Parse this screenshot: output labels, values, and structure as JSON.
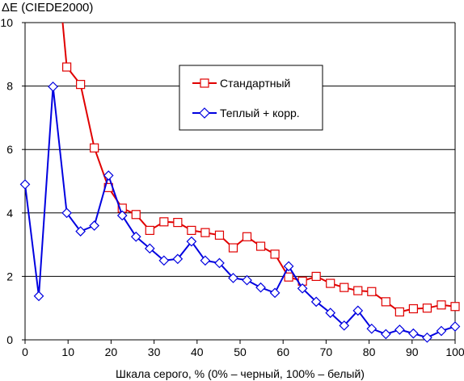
{
  "chart_data": {
    "type": "line",
    "title": "ΔE (CIEDE2000)",
    "xlabel": "Шкала серого, % (0% – черный, 100% – белый)",
    "ylabel": "",
    "xlim": [
      0,
      100
    ],
    "ylim": [
      0,
      10
    ],
    "x_ticks": [
      "0",
      "10",
      "20",
      "30",
      "40",
      "50",
      "60",
      "70",
      "80",
      "90",
      "100"
    ],
    "y_ticks": [
      "0",
      "2",
      "4",
      "6",
      "8",
      "10"
    ],
    "grid": "horizontal",
    "legend_position": "upper-middle-right",
    "series": [
      {
        "name": "Стандартный",
        "color": "#e00000",
        "marker": "square",
        "x": [
          9.7,
          12.9,
          16.1,
          19.4,
          22.6,
          25.8,
          29.0,
          32.3,
          35.5,
          38.7,
          41.9,
          45.2,
          48.4,
          51.6,
          54.8,
          58.1,
          61.3,
          64.5,
          67.7,
          71.0,
          74.2,
          77.4,
          80.6,
          83.9,
          87.1,
          90.3,
          93.5,
          96.8,
          100
        ],
        "y": [
          8.6,
          8.05,
          6.05,
          4.8,
          4.15,
          3.95,
          3.45,
          3.72,
          3.7,
          3.45,
          3.38,
          3.3,
          2.9,
          3.25,
          2.95,
          2.7,
          1.98,
          1.85,
          2.0,
          1.78,
          1.65,
          1.55,
          1.52,
          1.2,
          0.88,
          0.98,
          1.0,
          1.1,
          1.05
        ],
        "pre_segment_from": [
          8.4,
          10.5
        ]
      },
      {
        "name": "Теплый + корр.",
        "color": "#0000e0",
        "marker": "diamond",
        "x": [
          0,
          3.2,
          6.5,
          9.7,
          12.9,
          16.1,
          19.4,
          22.6,
          25.8,
          29.0,
          32.3,
          35.5,
          38.7,
          41.9,
          45.2,
          48.4,
          51.6,
          54.8,
          58.1,
          61.3,
          64.5,
          67.7,
          71.0,
          74.2,
          77.4,
          80.6,
          83.9,
          87.1,
          90.3,
          93.5,
          96.8,
          100
        ],
        "y": [
          4.9,
          1.38,
          7.98,
          4.0,
          3.42,
          3.6,
          5.18,
          3.92,
          3.25,
          2.88,
          2.5,
          2.55,
          3.1,
          2.5,
          2.42,
          1.95,
          1.88,
          1.65,
          1.48,
          2.32,
          1.62,
          1.2,
          0.85,
          0.45,
          0.92,
          0.35,
          0.18,
          0.32,
          0.2,
          0.07,
          0.28,
          0.42
        ]
      }
    ]
  }
}
